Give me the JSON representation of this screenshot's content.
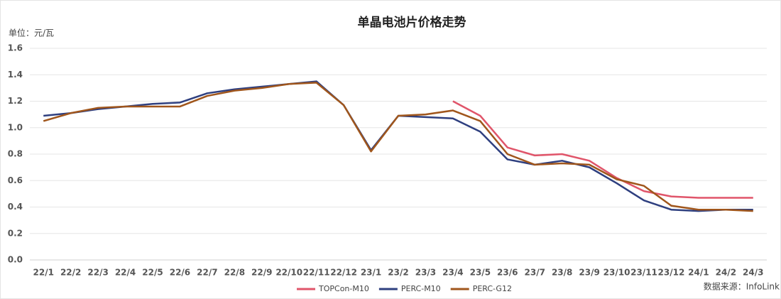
{
  "chart_data": {
    "type": "line",
    "title": "单晶电池片价格走势",
    "y_unit": "单位：元/瓦",
    "source": "数据来源：InfoLink",
    "categories": [
      "22/1",
      "22/2",
      "22/3",
      "22/4",
      "22/5",
      "22/6",
      "22/7",
      "22/8",
      "22/9",
      "22/10",
      "22/11",
      "22/12",
      "23/1",
      "23/2",
      "23/3",
      "23/4",
      "23/5",
      "23/6",
      "23/7",
      "23/8",
      "23/9",
      "23/10",
      "23/11",
      "23/12",
      "24/1",
      "24/2",
      "24/3"
    ],
    "series": [
      {
        "name": "TOPCon-M10",
        "color": "#e0556a",
        "values": [
          null,
          null,
          null,
          null,
          null,
          null,
          null,
          null,
          null,
          null,
          null,
          null,
          null,
          null,
          null,
          1.2,
          1.09,
          0.85,
          0.79,
          0.8,
          0.75,
          0.62,
          0.52,
          0.48,
          0.47,
          0.47,
          0.47
        ]
      },
      {
        "name": "PERC-M10",
        "color": "#2e3f7f",
        "values": [
          1.09,
          1.11,
          1.14,
          1.16,
          1.18,
          1.19,
          1.26,
          1.29,
          1.31,
          1.33,
          1.35,
          1.17,
          0.83,
          1.09,
          1.08,
          1.07,
          0.97,
          0.76,
          0.72,
          0.75,
          0.7,
          0.58,
          0.45,
          0.38,
          0.37,
          0.38,
          0.38
        ]
      },
      {
        "name": "PERC-G12",
        "color": "#a0561c",
        "values": [
          1.05,
          1.11,
          1.15,
          1.16,
          1.16,
          1.16,
          1.24,
          1.28,
          1.3,
          1.33,
          1.34,
          1.17,
          0.82,
          1.09,
          1.1,
          1.13,
          1.05,
          0.8,
          0.72,
          0.73,
          0.72,
          0.61,
          0.56,
          0.41,
          0.38,
          0.38,
          0.37
        ]
      }
    ],
    "ylim": [
      0,
      1.6
    ],
    "yticks": [
      {
        "value": 0,
        "label": "0.0"
      },
      0.2,
      0.4,
      0.6,
      0.8,
      {
        "value": 1,
        "label": "1.0"
      },
      1.2,
      1.4,
      1.6
    ],
    "grid": true,
    "legend": "bottom"
  }
}
